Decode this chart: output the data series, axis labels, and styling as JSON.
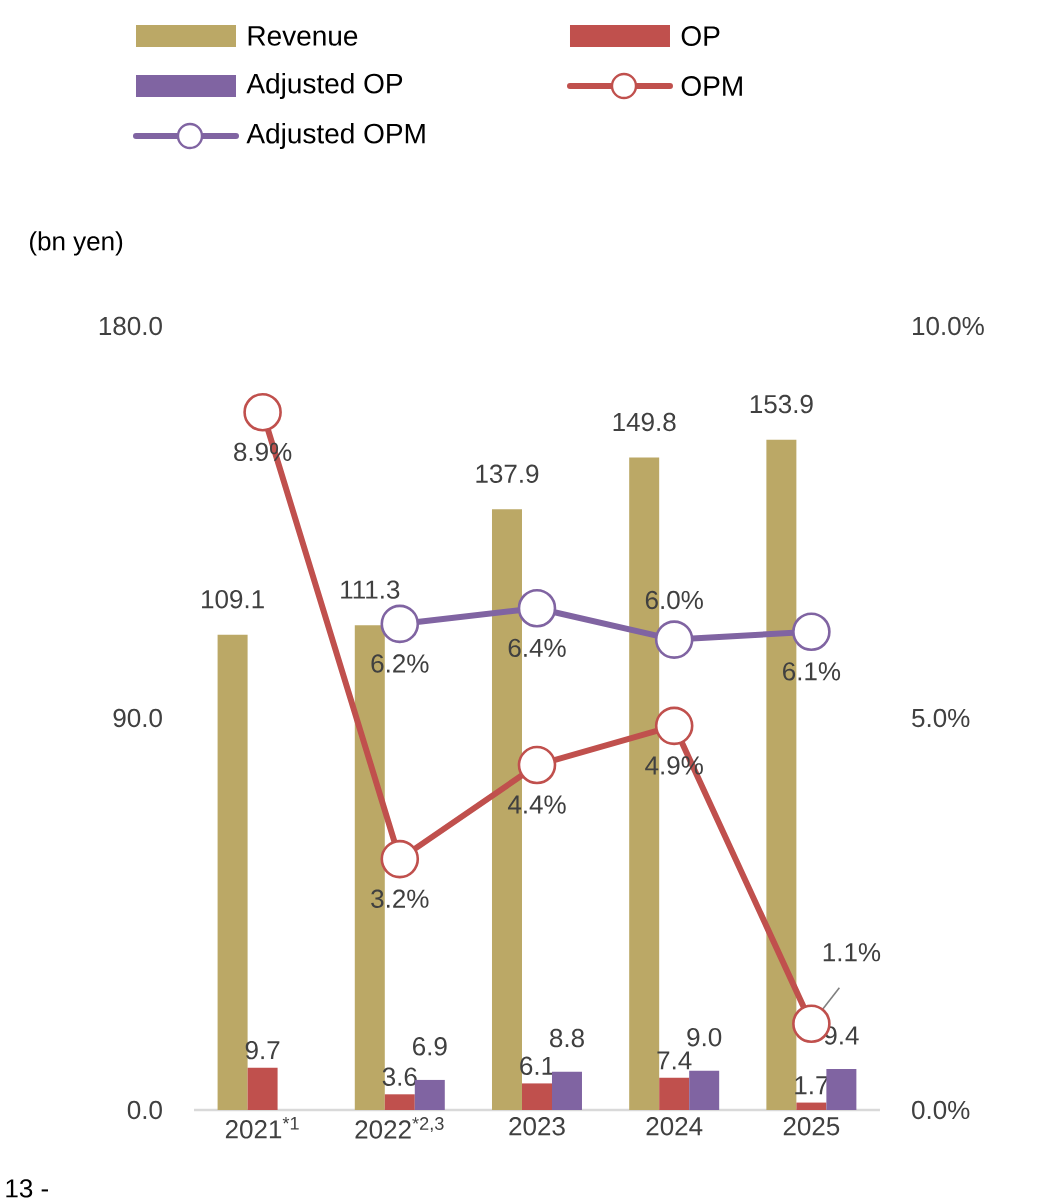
{
  "chart_data": {
    "type": "bar",
    "ylabel": "(bn yen)",
    "categories": [
      "2021$^{*1}$",
      "2022$^{*2,3}$",
      "2023",
      "2024",
      "2025"
    ],
    "series": [
      {
        "name": "Revenue",
        "color": "#bba866",
        "values": [
          109.1,
          111.3,
          137.9,
          149.8,
          153.9
        ],
        "value_labels": [
          "109.1",
          "111.3",
          "137.9",
          "149.8",
          "153.9"
        ]
      },
      {
        "name": "OP",
        "color": "#c0504d",
        "values": [
          9.7,
          3.6,
          6.1,
          7.4,
          1.7
        ],
        "value_labels": [
          "9.7",
          "3.6",
          "6.1",
          "7.4",
          "1.7"
        ]
      },
      {
        "name": "Adjusted OP",
        "color": "#8064a2",
        "values": [
          null,
          6.9,
          8.8,
          9.0,
          9.4
        ],
        "value_labels": [
          null,
          "6.9",
          "8.8",
          "9.0",
          "9.4"
        ]
      },
      {
        "name": "OPM",
        "type": "line",
        "axis": "y2",
        "marker": "circle",
        "color": "#c0504d",
        "values": [
          8.9,
          3.2,
          4.4,
          4.9,
          1.1
        ],
        "value_labels": [
          "8.9%",
          "3.2%",
          "4.4%",
          "4.9%",
          "1.1%"
        ]
      },
      {
        "name": "Adjusted OPM",
        "type": "line",
        "axis": "y2",
        "marker": "circle",
        "color": "#8064a2",
        "values": [
          null,
          6.2,
          6.4,
          6.0,
          6.1
        ],
        "value_labels": [
          null,
          "6.2%",
          "6.4%",
          "6.0%",
          "6.1%"
        ]
      }
    ],
    "ylim": [
      0,
      180
    ],
    "yticks": [
      {
        "value": 0,
        "label": "0.0"
      },
      {
        "value": 90,
        "label": "90.0"
      },
      {
        "value": 180,
        "label": "180.0"
      }
    ],
    "y2lim": [
      0,
      10
    ],
    "y2ticks": [
      {
        "value": 0,
        "label": "0.0%"
      },
      {
        "value": 5,
        "label": "5.0%"
      },
      {
        "value": 10,
        "label": "10.0%"
      }
    ],
    "grid": false,
    "legend": "top",
    "annotations": [
      "13 -"
    ]
  }
}
